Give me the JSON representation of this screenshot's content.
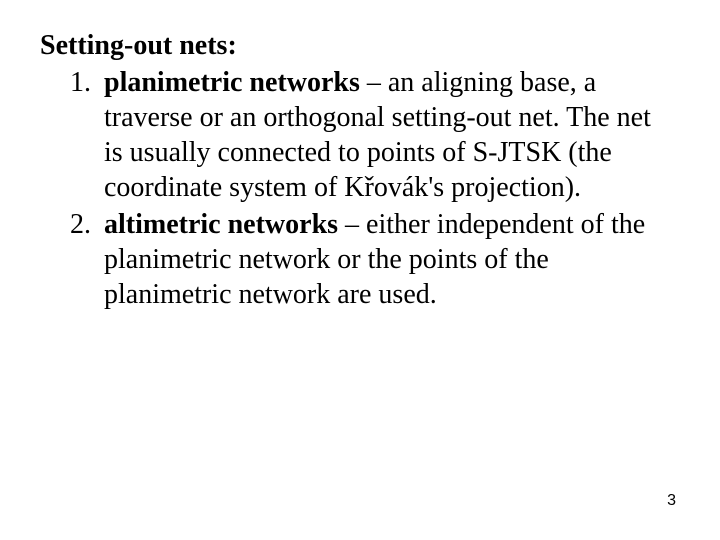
{
  "text_color": "#000000",
  "background_color": "#ffffff",
  "heading": "Setting-out nets:",
  "items": [
    {
      "term": "planimetric networks",
      "rest": " – an aligning base, a traverse or an orthogonal setting-out net. The net is usually connected to points of S-JTSK (the coordinate system of Křovák's projection)."
    },
    {
      "term": "altimetric networks",
      "rest": " – either independent of the planimetric network or the points of the planimetric network are used."
    }
  ],
  "page_number": "3",
  "typography": {
    "body_font": "Times New Roman",
    "body_size_pt": 21,
    "pagenum_font": "Arial",
    "pagenum_size_pt": 12
  }
}
